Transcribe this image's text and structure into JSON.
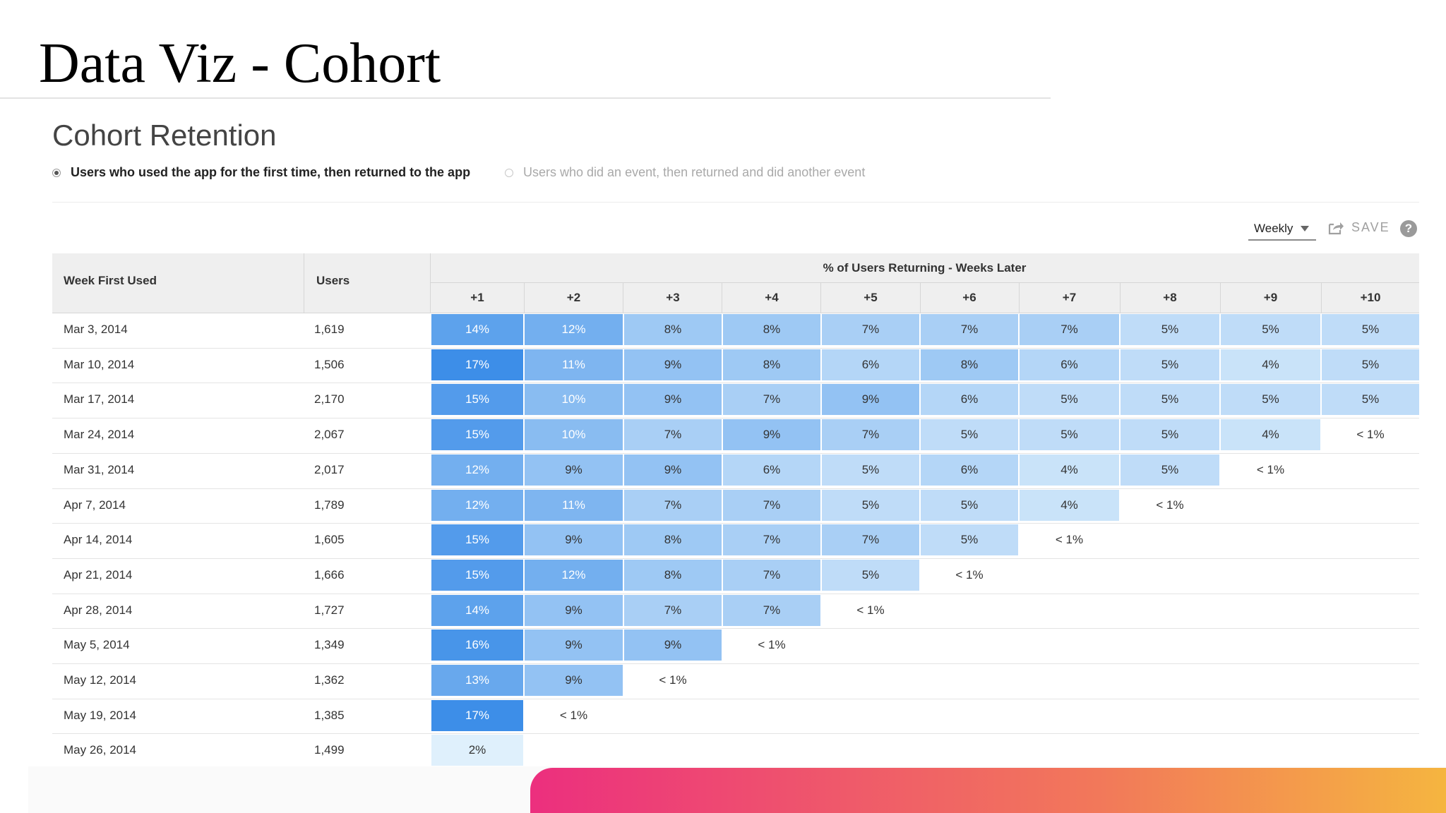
{
  "slide_title": "Data Viz - Cohort",
  "panel": {
    "heading": "Cohort Retention",
    "options": [
      {
        "label": "Users who used the app for the first time, then returned to the app",
        "selected": true
      },
      {
        "label": "Users who did an event, then returned and did another event",
        "selected": false
      }
    ],
    "interval": "Weekly",
    "save_label": "SAVE",
    "help": "?"
  },
  "colors": {
    "cell_min": "#dff0fc",
    "cell_max": "#3d8ee8",
    "gradient_bar": [
      "#ec2f7e",
      "#f2785a",
      "#f5b540"
    ]
  },
  "chart_data": {
    "type": "table",
    "title": "Cohort Retention",
    "columns": {
      "cohort": "Week First Used",
      "users": "Users",
      "group": "% of Users Returning - Weeks Later"
    },
    "weeks": [
      "+1",
      "+2",
      "+3",
      "+4",
      "+5",
      "+6",
      "+7",
      "+8",
      "+9",
      "+10"
    ],
    "rows": [
      {
        "date": "Mar 3, 2014",
        "users": "1,619",
        "values": [
          "14%",
          "12%",
          "8%",
          "8%",
          "7%",
          "7%",
          "7%",
          "5%",
          "5%",
          "5%"
        ]
      },
      {
        "date": "Mar 10, 2014",
        "users": "1,506",
        "values": [
          "17%",
          "11%",
          "9%",
          "8%",
          "6%",
          "8%",
          "6%",
          "5%",
          "4%",
          "5%"
        ]
      },
      {
        "date": "Mar 17, 2014",
        "users": "2,170",
        "values": [
          "15%",
          "10%",
          "9%",
          "7%",
          "9%",
          "6%",
          "5%",
          "5%",
          "5%",
          "5%"
        ]
      },
      {
        "date": "Mar 24, 2014",
        "users": "2,067",
        "values": [
          "15%",
          "10%",
          "7%",
          "9%",
          "7%",
          "5%",
          "5%",
          "5%",
          "4%",
          "< 1%"
        ]
      },
      {
        "date": "Mar 31, 2014",
        "users": "2,017",
        "values": [
          "12%",
          "9%",
          "9%",
          "6%",
          "5%",
          "6%",
          "4%",
          "5%",
          "< 1%"
        ]
      },
      {
        "date": "Apr 7, 2014",
        "users": "1,789",
        "values": [
          "12%",
          "11%",
          "7%",
          "7%",
          "5%",
          "5%",
          "4%",
          "< 1%"
        ]
      },
      {
        "date": "Apr 14, 2014",
        "users": "1,605",
        "values": [
          "15%",
          "9%",
          "8%",
          "7%",
          "7%",
          "5%",
          "< 1%"
        ]
      },
      {
        "date": "Apr 21, 2014",
        "users": "1,666",
        "values": [
          "15%",
          "12%",
          "8%",
          "7%",
          "5%",
          "< 1%"
        ]
      },
      {
        "date": "Apr 28, 2014",
        "users": "1,727",
        "values": [
          "14%",
          "9%",
          "7%",
          "7%",
          "< 1%"
        ]
      },
      {
        "date": "May 5, 2014",
        "users": "1,349",
        "values": [
          "16%",
          "9%",
          "9%",
          "< 1%"
        ]
      },
      {
        "date": "May 12, 2014",
        "users": "1,362",
        "values": [
          "13%",
          "9%",
          "< 1%"
        ]
      },
      {
        "date": "May 19, 2014",
        "users": "1,385",
        "values": [
          "17%",
          "< 1%"
        ]
      },
      {
        "date": "May 26, 2014",
        "users": "1,499",
        "values": [
          "2%"
        ]
      }
    ]
  }
}
